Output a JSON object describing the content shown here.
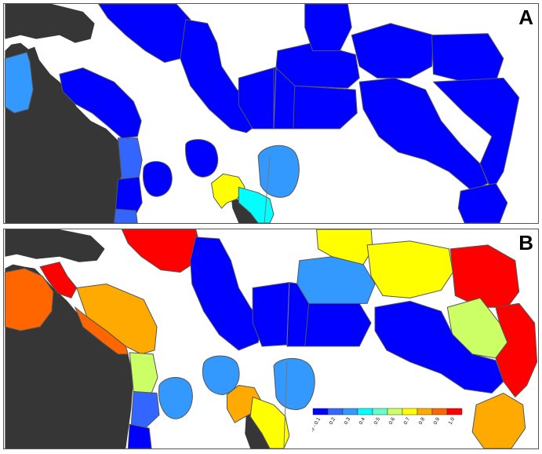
{
  "panels": [
    {
      "label": "A"
    },
    {
      "label": "B"
    }
  ],
  "legend": {
    "ticks": [
      "0.0 - 0.1",
      "0.2",
      "0.3",
      "0.4",
      "0.5",
      "0.6",
      "0.7",
      "0.8",
      "0.9",
      "1.0"
    ],
    "colors": [
      "#0000ff",
      "#3366ff",
      "#3399ff",
      "#00ffff",
      "#66ffcc",
      "#ccff66",
      "#ffff00",
      "#ffaa00",
      "#ff6600",
      "#ff0000"
    ]
  }
}
